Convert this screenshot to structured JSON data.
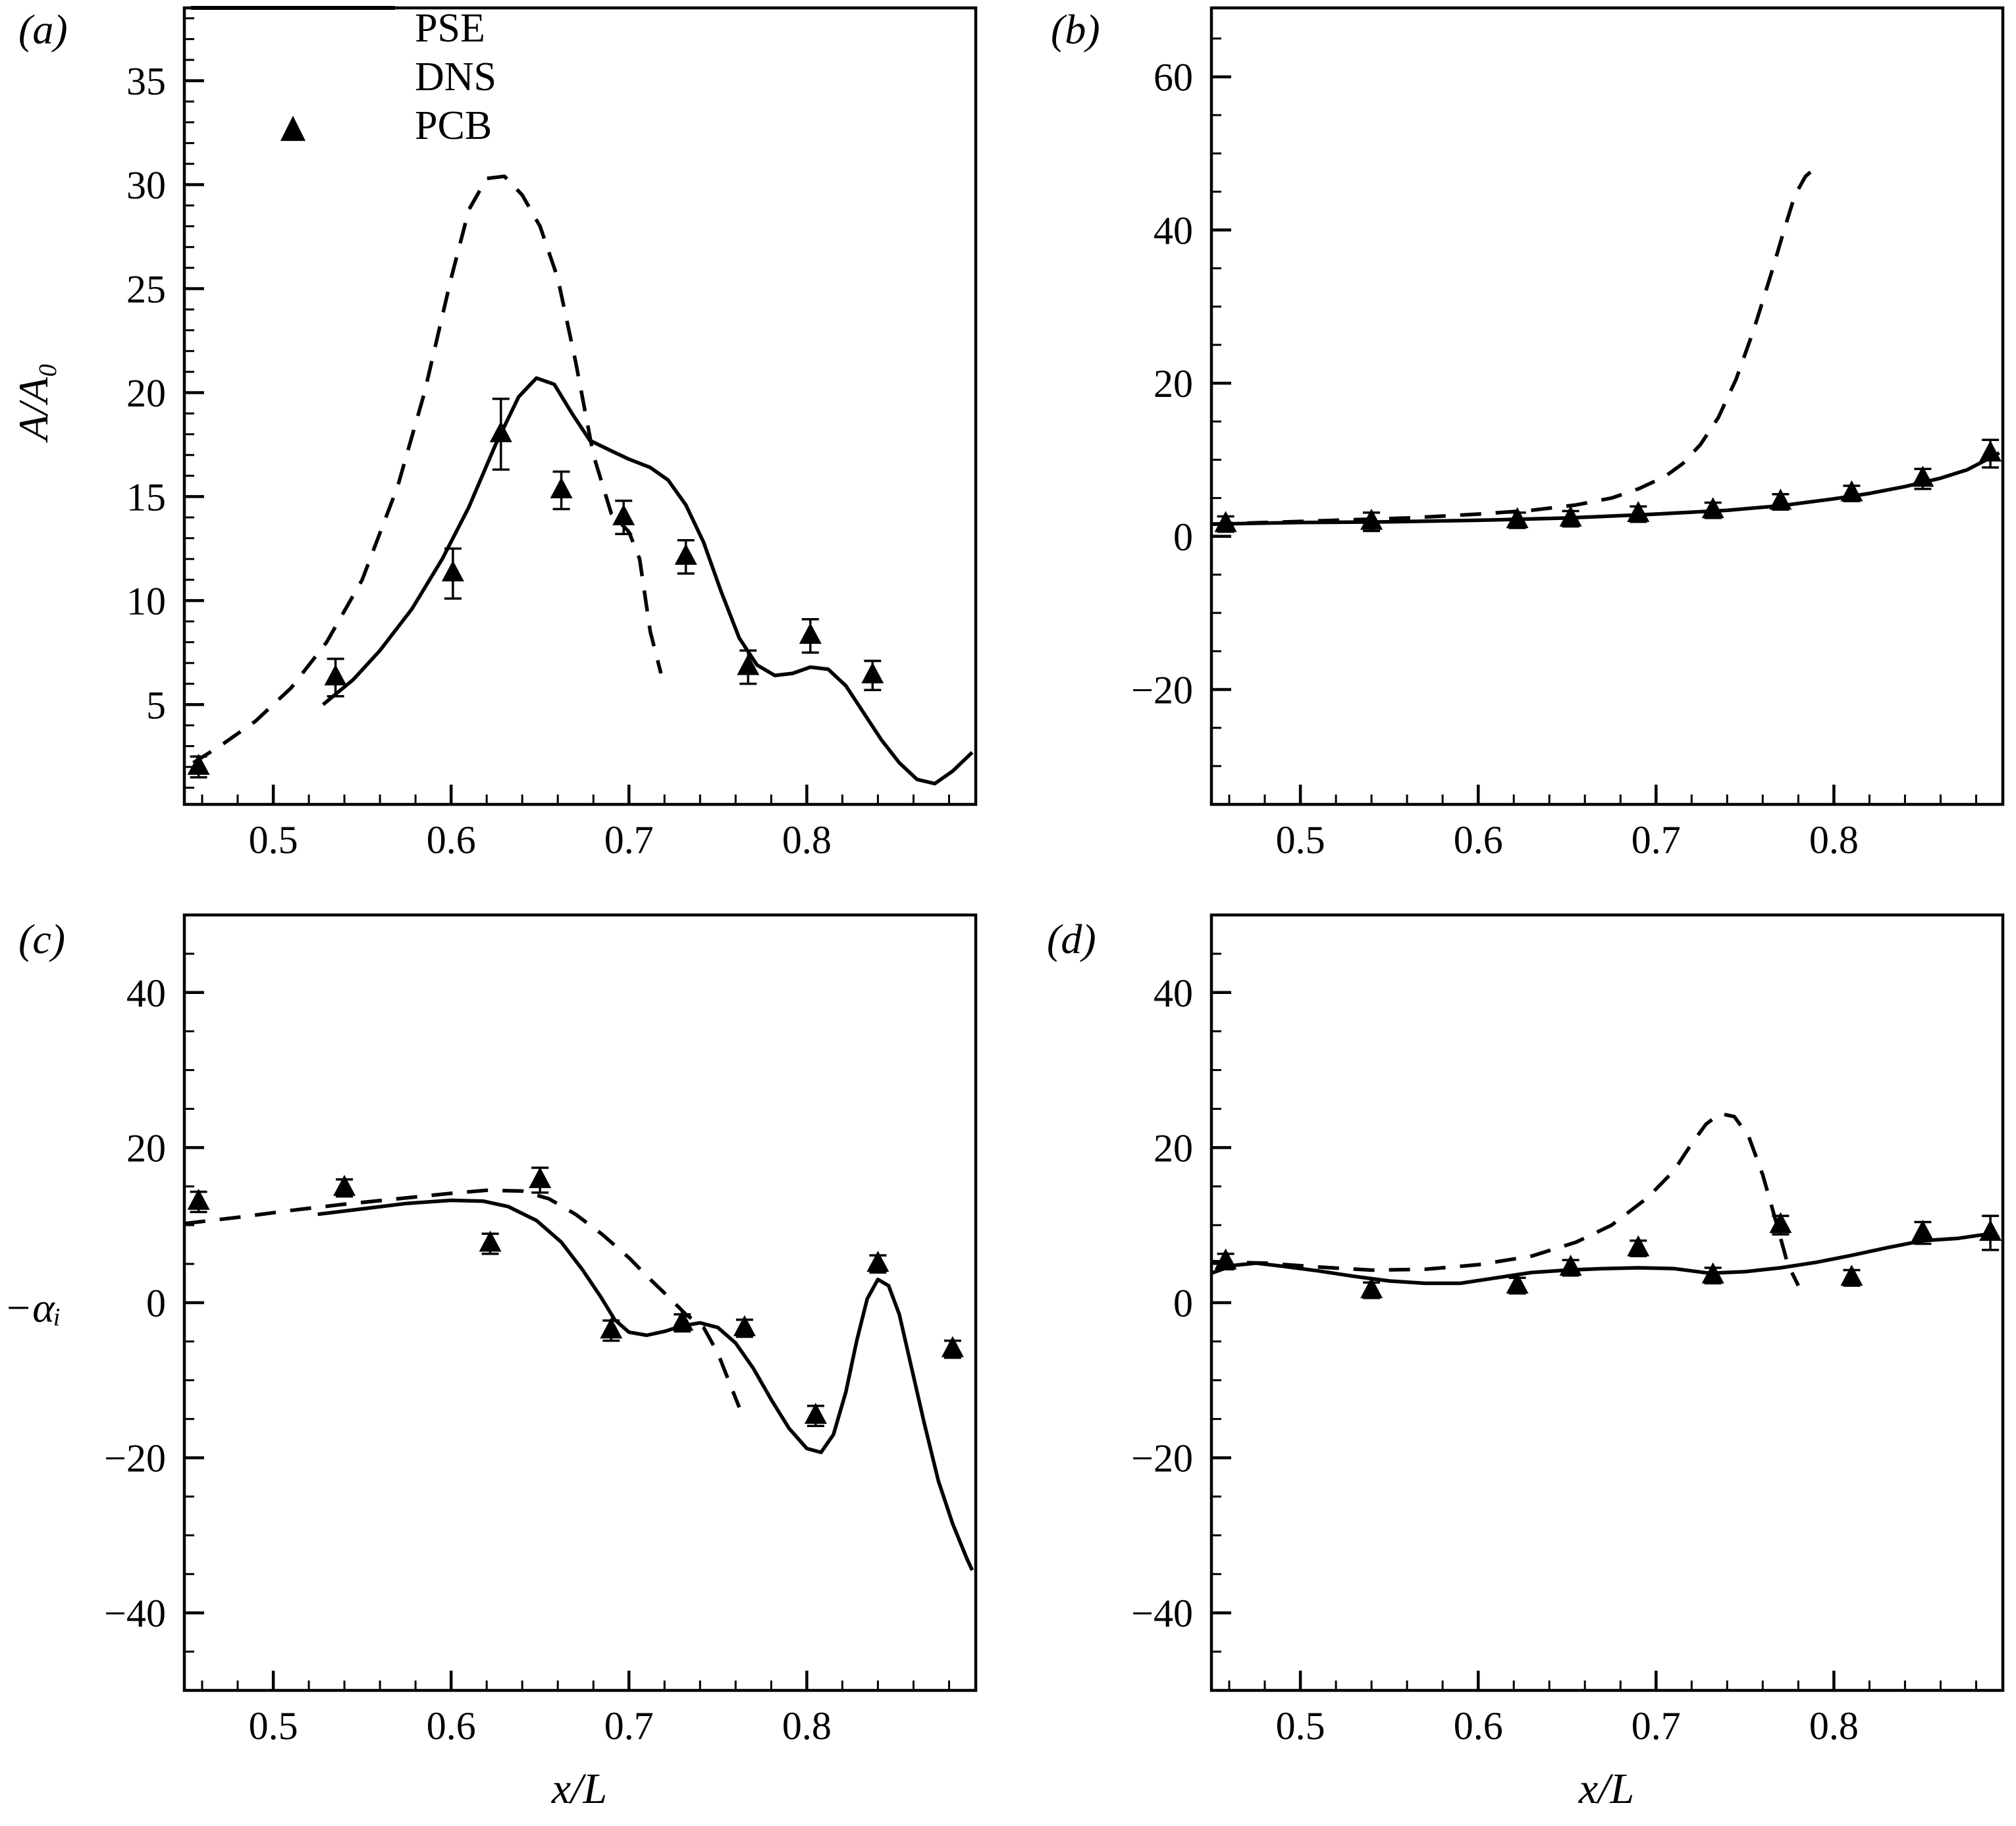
{
  "figure": {
    "xlabel": "x/L",
    "panels": [
      {
        "id": "a",
        "label": "(a)",
        "ylabel": "A/A₀"
      },
      {
        "id": "b",
        "label": "(b)",
        "ylabel": ""
      },
      {
        "id": "c",
        "label": "(c)",
        "ylabel": "−αᵢ"
      },
      {
        "id": "d",
        "label": "(d)",
        "ylabel": ""
      }
    ],
    "legend": {
      "items": [
        {
          "name": "PSE",
          "style": "dashed"
        },
        {
          "name": "DNS",
          "style": "solid"
        },
        {
          "name": "PCB",
          "style": "triangle"
        }
      ]
    }
  },
  "chart_data": [
    {
      "id": "a",
      "type": "line",
      "title": "",
      "xlabel": "x/L",
      "ylabel": "A/A₀",
      "xlim": [
        0.45,
        0.895
      ],
      "ylim": [
        0.2,
        38.5
      ],
      "xticks": [
        0.5,
        0.6,
        0.7,
        0.8
      ],
      "xtick_labels": [
        "0.5",
        "0.6",
        "0.7",
        "0.8"
      ],
      "xminor_step": 0.02,
      "yticks": [
        5,
        10,
        15,
        20,
        25,
        30,
        35
      ],
      "ytick_labels": [
        "5",
        "10",
        "15",
        "20",
        "25",
        "30",
        "35"
      ],
      "yminor_step": 1,
      "grid": false,
      "legend_position": "upper-left",
      "series": [
        {
          "name": "PSE",
          "style": "dashed",
          "x": [
            0.455,
            0.47,
            0.49,
            0.51,
            0.53,
            0.55,
            0.57,
            0.585,
            0.6,
            0.61,
            0.62,
            0.63,
            0.64,
            0.65,
            0.66,
            0.67,
            0.68,
            0.69,
            0.7,
            0.706,
            0.712,
            0.718
          ],
          "y": [
            2.2,
            3.0,
            4.2,
            5.8,
            8.0,
            11.0,
            15.5,
            20.0,
            25.5,
            28.8,
            30.3,
            30.4,
            29.5,
            28.0,
            25.5,
            21.5,
            17.0,
            14.2,
            13.3,
            12.0,
            8.5,
            6.5
          ]
        },
        {
          "name": "DNS",
          "style": "solid",
          "x": [
            0.528,
            0.545,
            0.56,
            0.578,
            0.595,
            0.61,
            0.625,
            0.638,
            0.648,
            0.658,
            0.668,
            0.678,
            0.69,
            0.7,
            0.712,
            0.722,
            0.732,
            0.742,
            0.752,
            0.762,
            0.772,
            0.782,
            0.792,
            0.802,
            0.812,
            0.822,
            0.832,
            0.842,
            0.852,
            0.862,
            0.872,
            0.882,
            0.893
          ],
          "y": [
            5.0,
            6.2,
            7.6,
            9.6,
            12.0,
            14.5,
            17.5,
            19.8,
            20.7,
            20.4,
            19.0,
            17.7,
            17.2,
            16.8,
            16.4,
            15.8,
            14.6,
            12.8,
            10.4,
            8.2,
            6.9,
            6.4,
            6.5,
            6.8,
            6.7,
            5.9,
            4.6,
            3.3,
            2.2,
            1.4,
            1.2,
            1.8,
            2.7
          ]
        },
        {
          "name": "PCB",
          "style": "markers",
          "marker": "triangle",
          "points": [
            [
              0.458,
              2.0,
              0.5
            ],
            [
              0.535,
              6.3,
              0.9
            ],
            [
              0.601,
              11.3,
              1.2
            ],
            [
              0.628,
              18.0,
              1.7
            ],
            [
              0.662,
              15.3,
              0.9
            ],
            [
              0.697,
              14.0,
              0.8
            ],
            [
              0.732,
              12.1,
              0.8
            ],
            [
              0.767,
              6.8,
              0.8
            ],
            [
              0.802,
              8.3,
              0.8
            ],
            [
              0.837,
              6.4,
              0.7
            ]
          ]
        }
      ]
    },
    {
      "id": "b",
      "type": "line",
      "title": "",
      "xlabel": "x/L",
      "ylabel": "",
      "xlim": [
        0.45,
        0.895
      ],
      "ylim": [
        -35,
        69
      ],
      "xticks": [
        0.5,
        0.6,
        0.7,
        0.8
      ],
      "xtick_labels": [
        "0.5",
        "0.6",
        "0.7",
        "0.8"
      ],
      "xminor_step": 0.02,
      "yticks": [
        -20,
        0,
        20,
        40,
        60
      ],
      "ytick_labels": [
        "−20",
        "0",
        "20",
        "40",
        "60"
      ],
      "yminor_step": 5,
      "grid": false,
      "series": [
        {
          "name": "PSE",
          "style": "dashed",
          "x": [
            0.45,
            0.48,
            0.52,
            0.56,
            0.6,
            0.63,
            0.655,
            0.675,
            0.69,
            0.705,
            0.715,
            0.725,
            0.735,
            0.745,
            0.755,
            0.765,
            0.772,
            0.778,
            0.784,
            0.79
          ],
          "y": [
            1.6,
            1.8,
            2.1,
            2.4,
            2.9,
            3.4,
            4.1,
            5.0,
            6.2,
            7.8,
            9.5,
            12.0,
            15.5,
            20.5,
            27.0,
            34.5,
            40.0,
            44.5,
            47.0,
            48.2
          ]
        },
        {
          "name": "DNS",
          "style": "solid",
          "x": [
            0.45,
            0.5,
            0.55,
            0.6,
            0.65,
            0.7,
            0.74,
            0.77,
            0.8,
            0.82,
            0.84,
            0.86,
            0.875,
            0.885,
            0.893
          ],
          "y": [
            1.6,
            1.8,
            1.9,
            2.1,
            2.4,
            2.9,
            3.4,
            4.0,
            4.9,
            5.6,
            6.5,
            7.6,
            8.7,
            9.9,
            10.9
          ]
        },
        {
          "name": "PCB",
          "style": "markers",
          "marker": "triangle",
          "points": [
            [
              0.458,
              1.6,
              1.0
            ],
            [
              0.54,
              1.9,
              1.2
            ],
            [
              0.622,
              2.1,
              1.0
            ],
            [
              0.652,
              2.3,
              1.0
            ],
            [
              0.69,
              2.9,
              1.0
            ],
            [
              0.732,
              3.4,
              1.0
            ],
            [
              0.77,
              4.5,
              1.0
            ],
            [
              0.81,
              5.6,
              1.0
            ],
            [
              0.85,
              7.5,
              1.3
            ],
            [
              0.888,
              10.8,
              1.8
            ]
          ]
        }
      ]
    },
    {
      "id": "c",
      "type": "line",
      "title": "",
      "xlabel": "x/L",
      "ylabel": "−αᵢ",
      "xlim": [
        0.45,
        0.895
      ],
      "ylim": [
        -50,
        50
      ],
      "xticks": [
        0.5,
        0.6,
        0.7,
        0.8
      ],
      "xtick_labels": [
        "0.5",
        "0.6",
        "0.7",
        "0.8"
      ],
      "xminor_step": 0.02,
      "yticks": [
        -40,
        -20,
        0,
        20,
        40
      ],
      "ytick_labels": [
        "−40",
        "−20",
        "0",
        "20",
        "40"
      ],
      "yminor_step": 5,
      "grid": false,
      "series": [
        {
          "name": "PSE",
          "style": "dashed",
          "x": [
            0.45,
            0.48,
            0.51,
            0.54,
            0.57,
            0.6,
            0.62,
            0.64,
            0.655,
            0.67,
            0.685,
            0.7,
            0.712,
            0.722,
            0.732,
            0.742,
            0.75,
            0.756,
            0.762
          ],
          "y": [
            10.2,
            11.0,
            11.9,
            12.7,
            13.4,
            14.1,
            14.5,
            14.4,
            13.4,
            11.4,
            8.8,
            5.8,
            3.0,
            0.8,
            -1.5,
            -3.2,
            -6.5,
            -10.0,
            -13.5
          ]
        },
        {
          "name": "DNS",
          "style": "solid",
          "x": [
            0.525,
            0.55,
            0.575,
            0.6,
            0.618,
            0.632,
            0.648,
            0.662,
            0.674,
            0.684,
            0.692,
            0.7,
            0.71,
            0.72,
            0.73,
            0.74,
            0.75,
            0.76,
            0.77,
            0.78,
            0.79,
            0.8,
            0.808,
            0.815,
            0.822,
            0.828,
            0.834,
            0.84,
            0.846,
            0.852,
            0.858,
            0.866,
            0.874,
            0.882,
            0.89,
            0.893
          ],
          "y": [
            11.4,
            12.1,
            12.8,
            13.2,
            13.1,
            12.4,
            10.6,
            7.8,
            4.2,
            0.8,
            -2.2,
            -3.8,
            -4.2,
            -3.7,
            -3.0,
            -2.6,
            -3.2,
            -5.2,
            -8.5,
            -12.5,
            -16.2,
            -18.8,
            -19.3,
            -17.0,
            -11.5,
            -5.0,
            0.5,
            3.0,
            2.2,
            -1.5,
            -7.5,
            -15.5,
            -23.0,
            -28.5,
            -33.0,
            -34.5
          ]
        },
        {
          "name": "PCB",
          "style": "markers",
          "marker": "triangle",
          "points": [
            [
              0.458,
              13.0,
              1.3
            ],
            [
              0.54,
              14.8,
              1.1
            ],
            [
              0.622,
              7.6,
              1.3
            ],
            [
              0.65,
              15.8,
              1.6
            ],
            [
              0.69,
              -3.6,
              1.3
            ],
            [
              0.73,
              -2.6,
              1.1
            ],
            [
              0.765,
              -3.3,
              1.1
            ],
            [
              0.805,
              -14.6,
              1.3
            ],
            [
              0.84,
              5.0,
              1.1
            ],
            [
              0.882,
              -6.0,
              1.1
            ]
          ]
        }
      ]
    },
    {
      "id": "d",
      "type": "line",
      "title": "",
      "xlabel": "x/L",
      "ylabel": "",
      "xlim": [
        0.45,
        0.895
      ],
      "ylim": [
        -50,
        50
      ],
      "xticks": [
        0.5,
        0.6,
        0.7,
        0.8
      ],
      "xtick_labels": [
        "0.5",
        "0.6",
        "0.7",
        "0.8"
      ],
      "xminor_step": 0.02,
      "yticks": [
        -40,
        -20,
        0,
        20,
        40
      ],
      "ytick_labels": [
        "−40",
        "−20",
        "0",
        "20",
        "40"
      ],
      "yminor_step": 5,
      "grid": false,
      "series": [
        {
          "name": "PSE",
          "style": "dashed",
          "x": [
            0.45,
            0.48,
            0.51,
            0.54,
            0.57,
            0.6,
            0.63,
            0.655,
            0.675,
            0.695,
            0.71,
            0.72,
            0.728,
            0.736,
            0.744,
            0.752,
            0.76,
            0.768,
            0.774,
            0.78
          ],
          "y": [
            5.3,
            5.1,
            4.6,
            4.2,
            4.3,
            4.9,
            6.0,
            7.8,
            10.0,
            13.5,
            17.0,
            20.5,
            23.0,
            24.4,
            24.0,
            21.5,
            16.5,
            10.0,
            5.0,
            2.2
          ]
        },
        {
          "name": "DNS",
          "style": "solid",
          "x": [
            0.45,
            0.462,
            0.475,
            0.49,
            0.51,
            0.53,
            0.55,
            0.57,
            0.59,
            0.61,
            0.63,
            0.65,
            0.67,
            0.69,
            0.71,
            0.73,
            0.75,
            0.77,
            0.79,
            0.81,
            0.83,
            0.85,
            0.87,
            0.885,
            0.893
          ],
          "y": [
            3.8,
            4.8,
            5.1,
            4.7,
            4.1,
            3.4,
            2.8,
            2.5,
            2.5,
            3.2,
            3.9,
            4.2,
            4.4,
            4.5,
            4.4,
            3.8,
            4.0,
            4.5,
            5.2,
            6.1,
            7.1,
            8.0,
            8.3,
            8.8,
            8.4
          ]
        },
        {
          "name": "PCB",
          "style": "markers",
          "marker": "triangle",
          "points": [
            [
              0.458,
              5.3,
              1.0
            ],
            [
              0.54,
              1.6,
              1.0
            ],
            [
              0.622,
              2.2,
              1.0
            ],
            [
              0.652,
              4.5,
              1.0
            ],
            [
              0.69,
              7.0,
              1.0
            ],
            [
              0.732,
              3.5,
              1.0
            ],
            [
              0.77,
              10.0,
              1.2
            ],
            [
              0.81,
              3.2,
              1.0
            ],
            [
              0.85,
              9.0,
              1.4
            ],
            [
              0.888,
              9.0,
              2.2
            ]
          ]
        }
      ]
    }
  ],
  "style": {
    "line_color": "#000000",
    "background": "#ffffff"
  }
}
